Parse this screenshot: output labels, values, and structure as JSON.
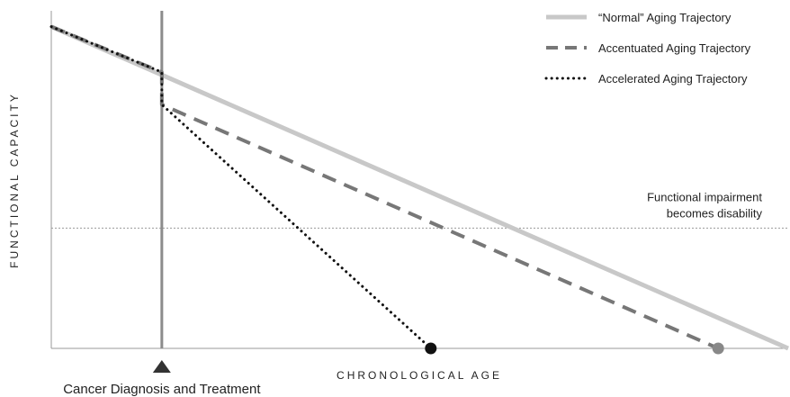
{
  "chart_data": {
    "type": "line",
    "xlabel": "CHRONOLOGICAL AGE",
    "ylabel": "FUNCTIONAL CAPACITY",
    "xlim": [
      0,
      100
    ],
    "ylim": [
      0,
      100
    ],
    "grid": false,
    "legend_position": "top-right",
    "series": [
      {
        "name": "“Normal” Aging Trajectory",
        "style": "solid",
        "color": "#c8c8c8",
        "points": [
          [
            0,
            99
          ],
          [
            100,
            0
          ]
        ]
      },
      {
        "name": "Accentuated Aging Trajectory",
        "style": "dashed",
        "color": "#777777",
        "points": [
          [
            0,
            99
          ],
          [
            15,
            85
          ],
          [
            15,
            75
          ],
          [
            90.5,
            0
          ]
        ],
        "end_marker_color": "#888888"
      },
      {
        "name": "Accelerated Aging Trajectory",
        "style": "dotted",
        "color": "#111111",
        "points": [
          [
            0,
            99
          ],
          [
            15,
            85
          ],
          [
            15,
            75
          ],
          [
            51.5,
            0
          ]
        ],
        "end_marker_color": "#111111"
      }
    ],
    "annotations": {
      "threshold": {
        "y": 37,
        "label_line1": "Functional impairment",
        "label_line2": "becomes disability"
      },
      "event": {
        "x": 15,
        "label": "Cancer Diagnosis and Treatment"
      }
    }
  }
}
